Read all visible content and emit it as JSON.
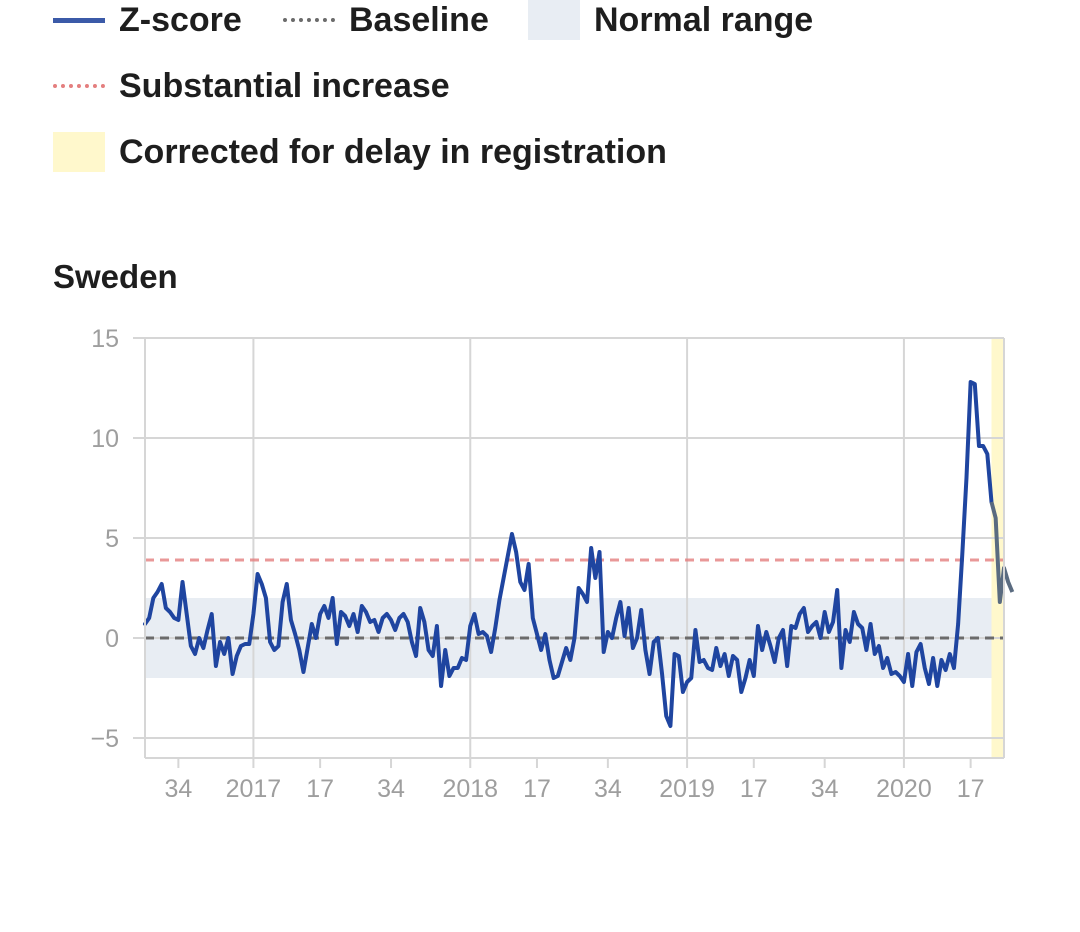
{
  "legend": {
    "zscore": "Z-score",
    "baseline": "Baseline",
    "normal": "Normal range",
    "substantial": "Substantial increase",
    "corrected": "Corrected for delay in registration"
  },
  "colors": {
    "zscore": "#1f45a0",
    "baseline": "#6b6b6b",
    "normal": "#e8edf3",
    "substantial": "#e47f7f",
    "corrected": "#fff8cc",
    "corrected_line": "#5a6b80",
    "grid": "#d6d6d6"
  },
  "chart_data": {
    "type": "line",
    "title": "Sweden",
    "ylim": [
      -6,
      15
    ],
    "yticks": [
      15,
      10,
      5,
      0,
      -5
    ],
    "ytick_labels": [
      "15",
      "10",
      "5",
      "0",
      "−5"
    ],
    "x_range": [
      0,
      206
    ],
    "xticks": [
      {
        "x": 8,
        "label": "34"
      },
      {
        "x": 26,
        "label": "2017"
      },
      {
        "x": 42,
        "label": "17"
      },
      {
        "x": 59,
        "label": "34"
      },
      {
        "x": 78,
        "label": "2018"
      },
      {
        "x": 94,
        "label": "17"
      },
      {
        "x": 111,
        "label": "34"
      },
      {
        "x": 130,
        "label": "2019"
      },
      {
        "x": 146,
        "label": "17"
      },
      {
        "x": 163,
        "label": "34"
      },
      {
        "x": 182,
        "label": "2020"
      },
      {
        "x": 198,
        "label": "17"
      }
    ],
    "year_gridlines": [
      26,
      78,
      130,
      182
    ],
    "baseline": 0,
    "normal_range": [
      -2,
      2
    ],
    "substantial_increase": 3.9,
    "corrected_from": 203,
    "series": [
      {
        "values": [
          0.7,
          1.0,
          2.0,
          2.3,
          2.7,
          1.5,
          1.3,
          1.0,
          0.9,
          2.8,
          1.2,
          -0.4,
          -0.8,
          0.0,
          -0.5,
          0.4,
          1.2,
          -1.4,
          -0.2,
          -0.8,
          0.0,
          -1.8,
          -0.9,
          -0.4,
          -0.3,
          -0.3,
          1.2,
          3.2,
          2.7,
          2.0,
          -0.2,
          -0.6,
          -0.4,
          1.8,
          2.7,
          0.9,
          0.2,
          -0.6,
          -1.7,
          -0.5,
          0.7,
          0.0,
          1.2,
          1.6,
          1.0,
          2.0,
          -0.3,
          1.3,
          1.1,
          0.6,
          1.2,
          0.3,
          1.6,
          1.3,
          0.8,
          0.9,
          0.3,
          1.0,
          1.2,
          0.9,
          0.4,
          1.0,
          1.2,
          0.8,
          -0.2,
          -0.9,
          1.5,
          0.8,
          -0.6,
          -0.9,
          0.6,
          -2.4,
          -0.6,
          -1.9,
          -1.5,
          -1.5,
          -1.0,
          -1.1,
          0.6,
          1.2,
          0.2,
          0.3,
          0.1,
          -0.7,
          0.5,
          1.9,
          3.0,
          4.1,
          5.2,
          4.3,
          2.8,
          2.4,
          3.7,
          1.0,
          0.2,
          -0.6,
          0.2,
          -1.1,
          -2.0,
          -1.9,
          -1.2,
          -0.5,
          -1.1,
          0.0,
          2.5,
          2.2,
          1.8,
          4.5,
          3.0,
          4.3,
          -0.7,
          0.3,
          0.0,
          1.0,
          1.8,
          0.1,
          1.5,
          -0.5,
          0.0,
          1.4,
          -0.6,
          -1.8,
          -0.2,
          0.0,
          -1.8,
          -3.9,
          -4.4,
          -0.8,
          -0.9,
          -2.7,
          -2.2,
          -2.0,
          0.4,
          -1.2,
          -1.1,
          -1.5,
          -1.6,
          -0.5,
          -1.4,
          -0.8,
          -1.9,
          -0.9,
          -1.1,
          -2.7,
          -2.0,
          -1.1,
          -1.9,
          0.6,
          -0.6,
          0.3,
          -0.4,
          -1.2,
          0.0,
          0.4,
          -1.4,
          0.6,
          0.5,
          1.2,
          1.5,
          0.3,
          0.6,
          0.8,
          0.0,
          1.3,
          0.3,
          0.8,
          2.4,
          -1.5,
          0.4,
          -0.2,
          1.3,
          0.7,
          0.5,
          -0.6,
          0.7,
          -0.8,
          -0.4,
          -1.5,
          -1.0,
          -1.8,
          -1.7,
          -1.9,
          -2.2,
          -0.8,
          -2.4,
          -0.7,
          -0.3,
          -1.5,
          -2.3,
          -1.0,
          -2.4,
          -1.1,
          -1.6,
          -0.8,
          -1.5,
          0.7,
          4.2,
          8.0,
          12.8,
          12.7,
          9.6,
          9.6,
          9.2,
          6.8,
          6.0,
          1.8,
          3.5,
          2.8,
          2.3
        ]
      }
    ]
  }
}
